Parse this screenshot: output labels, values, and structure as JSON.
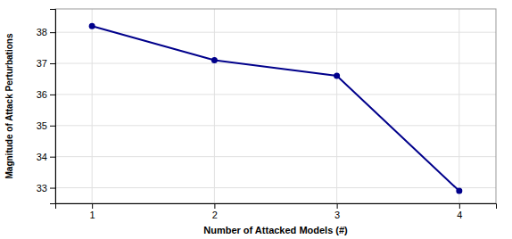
{
  "chart_data": {
    "type": "line",
    "x": [
      1,
      2,
      3,
      4
    ],
    "values": [
      38.2,
      37.1,
      36.6,
      32.9
    ],
    "color": "#00008B",
    "marker": "circle",
    "xlabel": "Number of Attacked Models (#)",
    "ylabel": "Magnitude of Attack Perturbations",
    "xlim": [
      0.7,
      4.3
    ],
    "ylim": [
      32.5,
      38.75
    ],
    "xticks": [
      1,
      2,
      3,
      4
    ],
    "yticks": [
      33,
      34,
      35,
      36,
      37,
      38
    ],
    "grid": true
  }
}
